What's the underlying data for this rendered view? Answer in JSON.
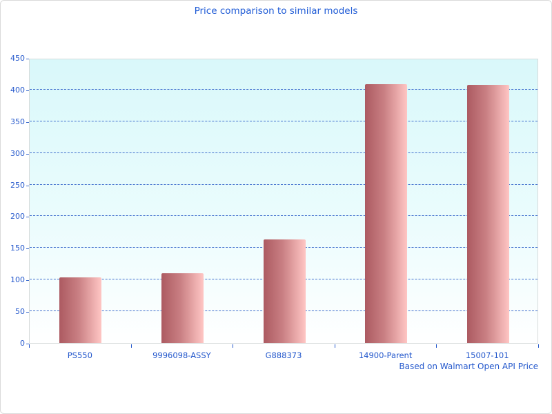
{
  "page": {
    "background": "#ffffff",
    "border_color": "#d9d9d9"
  },
  "chart_data": {
    "type": "bar",
    "title": "Price comparison to similar models",
    "caption": "Based on Walmart Open API Price",
    "categories": [
      "PS550",
      "9996098-ASSY",
      "G888373",
      "14900-Parent",
      "15007-101"
    ],
    "values": [
      104,
      110,
      163,
      409,
      407
    ],
    "xlabel": "",
    "ylabel": "",
    "ylim": [
      0,
      450
    ],
    "ytick_step": 50,
    "yticks": [
      0,
      50,
      100,
      150,
      200,
      250,
      300,
      350,
      400,
      450
    ],
    "grid": "horizontal-dashed",
    "legend_position": "none",
    "colors": {
      "title_text": "#1f5bd6",
      "axis_text": "#2458cc",
      "gridline": "#3c6bcc",
      "bar_gradient_left": "#ac5a61",
      "bar_gradient_right": "#ffc6c4",
      "plot_bg_top": "#d9f8fa",
      "plot_bg_bottom": "#ffffff",
      "plot_border": "#d6dada"
    }
  }
}
